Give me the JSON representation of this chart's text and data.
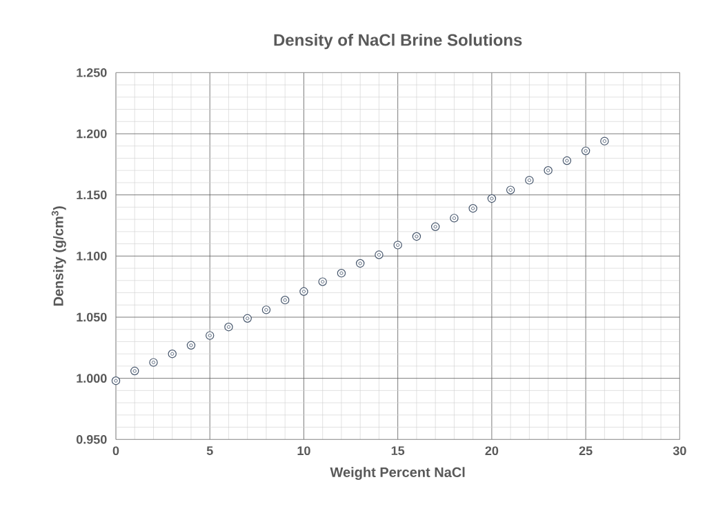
{
  "chart_data": {
    "type": "scatter",
    "title": "Density of NaCl Brine Solutions",
    "xlabel": "Weight Percent NaCl",
    "ylabel": "Density (g/cm$^{3}$)",
    "x": [
      0,
      1,
      2,
      3,
      4,
      5,
      6,
      7,
      8,
      9,
      10,
      11,
      12,
      13,
      14,
      15,
      16,
      17,
      18,
      19,
      20,
      21,
      22,
      23,
      24,
      25,
      26
    ],
    "values": [
      0.998,
      1.006,
      1.013,
      1.02,
      1.027,
      1.035,
      1.042,
      1.049,
      1.056,
      1.064,
      1.071,
      1.079,
      1.086,
      1.094,
      1.101,
      1.109,
      1.116,
      1.124,
      1.131,
      1.139,
      1.147,
      1.154,
      1.162,
      1.17,
      1.178,
      1.186,
      1.194
    ],
    "color": "#44546a",
    "marker": "circle",
    "grid": true,
    "xlim": [
      0,
      30
    ],
    "xticks": [
      0,
      5,
      10,
      15,
      20,
      25,
      30
    ],
    "ylim": [
      0.95,
      1.25
    ],
    "yticks": [
      {
        "value": 0.95,
        "label": "0.950"
      },
      {
        "value": 1.0,
        "label": "1.000"
      },
      {
        "value": 1.05,
        "label": "1.050"
      },
      {
        "value": 1.1,
        "label": "1.100"
      },
      {
        "value": 1.15,
        "label": "1.150"
      },
      {
        "value": 1.2,
        "label": "1.200"
      },
      {
        "value": 1.25,
        "label": "1.250"
      }
    ]
  }
}
